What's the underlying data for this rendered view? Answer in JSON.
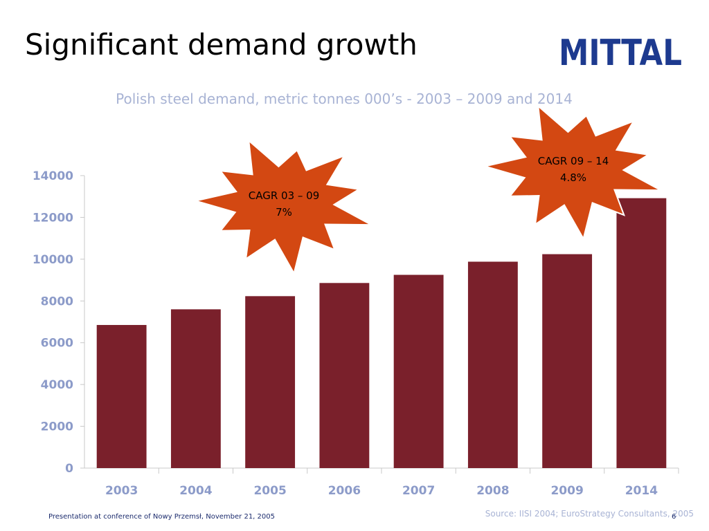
{
  "slide": {
    "title": "Significant demand growth",
    "logo_text": "MITTAL",
    "footer_note": "Presentation at conference of Nowy Przemsł, November 21, 2005",
    "page_number": "6",
    "source": "Source: IISI 2004; EuroStrategy Consultants, 2005"
  },
  "colors": {
    "bar": "#7a202b",
    "callout_fill": "#d34812",
    "callout_stroke": "#ffffff",
    "subtitle": "#a8b3d4",
    "axis_labels": "#8c9bc9",
    "logo": "#1d3a8f",
    "text_dark": "#1a2a6c"
  },
  "chart_data": {
    "type": "bar",
    "title": "Polish steel demand, metric tonnes 000’s - 2003 – 2009 and 2014",
    "categories": [
      "2003",
      "2004",
      "2005",
      "2006",
      "2007",
      "2008",
      "2009",
      "2014"
    ],
    "values": [
      6850,
      7600,
      8230,
      8860,
      9250,
      9880,
      10240,
      12920
    ],
    "ylim": [
      0,
      14000
    ],
    "yticks": [
      0,
      2000,
      4000,
      6000,
      8000,
      10000,
      12000,
      14000
    ],
    "ytick_labels": [
      "0",
      "2000",
      "4000",
      "6000",
      "8000",
      "10000",
      "12000",
      "14000"
    ],
    "grid": false,
    "annotations": [
      {
        "line1": "CAGR 03 – 09",
        "line2": "7%"
      },
      {
        "line1": "CAGR 09 – 14",
        "line2": "4.8%"
      }
    ]
  }
}
